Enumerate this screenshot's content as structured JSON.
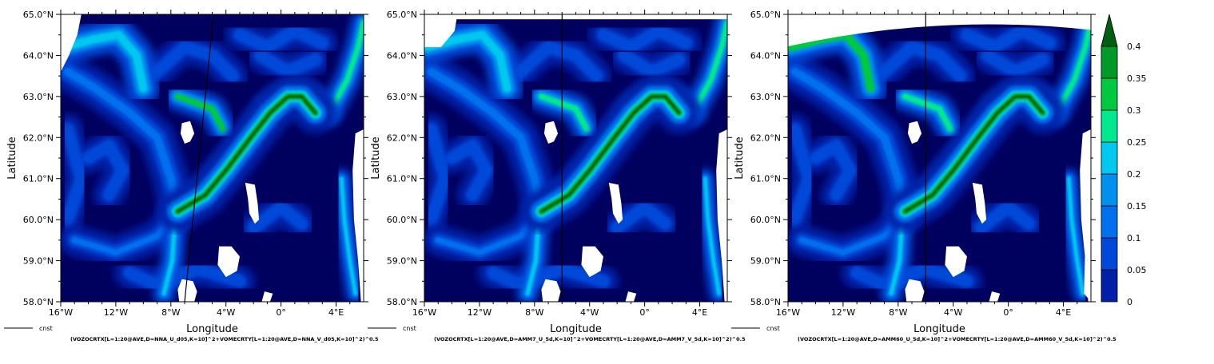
{
  "colors": {
    "levels": [
      "#00005f",
      "#0020a8",
      "#0048d8",
      "#0070ee",
      "#0090f0",
      "#00c8ee",
      "#00e890",
      "#00c840",
      "#009a28",
      "#005e10"
    ],
    "land": "#ffffff"
  },
  "chart_data": [
    {
      "type": "heatmap",
      "panel": "NNA_d05",
      "xlabel": "Longitude",
      "ylabel": "Latitude",
      "x_ticks": [
        "16°W",
        "12°W",
        "8°W",
        "4°W",
        "0°",
        "4°E"
      ],
      "y_ticks": [
        "65.0°N",
        "64.0°N",
        "63.0°N",
        "62.0°N",
        "61.0°N",
        "60.0°N",
        "59.0°N",
        "58.0°N"
      ],
      "xlim": [
        -16,
        6
      ],
      "ylim": [
        58,
        65
      ],
      "legend_entry": "cnst",
      "expression": "(VOZOCRTX[L=1:20@AVE,D=NNA_U_d05,K=10]^2+VOMECRTY[L=1:20@AVE,D=NNA_V_d05,K=10]^2)^0.5",
      "section_line": [
        [
          -7.0,
          58.0
        ],
        [
          -4.9,
          65.0
        ]
      ]
    },
    {
      "type": "heatmap",
      "panel": "AMM7_5d",
      "xlabel": "Longitude",
      "ylabel": "Latitude",
      "x_ticks": [
        "16°W",
        "12°W",
        "8°W",
        "4°W",
        "0°",
        "4°E"
      ],
      "y_ticks": [
        "65.0°N",
        "64.0°N",
        "63.0°N",
        "62.0°N",
        "61.0°N",
        "60.0°N",
        "59.0°N",
        "58.0°N"
      ],
      "xlim": [
        -16,
        6
      ],
      "ylim": [
        58,
        65
      ],
      "legend_entry": "cnst",
      "expression": "(VOZOCRTX[L=1:20@AVE,D=AMM7_U_5d,K=10]^2+VOMECRTY[L=1:20@AVE,D=AMM7_V_5d,K=10]^2)^0.5",
      "section_line": [
        [
          -6.0,
          58.0
        ],
        [
          -6.0,
          65.0
        ]
      ]
    },
    {
      "type": "heatmap",
      "panel": "AMM60_5d",
      "xlabel": "Longitude",
      "ylabel": "Latitude",
      "x_ticks": [
        "16°W",
        "12°W",
        "8°W",
        "4°W",
        "0°",
        "4°E"
      ],
      "y_ticks": [
        "65.0°N",
        "64.0°N",
        "63.0°N",
        "62.0°N",
        "61.0°N",
        "60.0°N",
        "59.0°N",
        "58.0°N"
      ],
      "xlim": [
        -16,
        6
      ],
      "ylim": [
        58,
        65
      ],
      "legend_entry": "cnst",
      "expression": "(VOZOCRTX[L=1:20@AVE,D=AMM60_U_5d,K=10]^2+VOMECRTY[L=1:20@AVE,D=AMM60_V_5d,K=10]^2)^0.5",
      "section_line": [
        [
          -6.0,
          58.0
        ],
        [
          -6.0,
          65.0
        ]
      ]
    }
  ],
  "colorbar": {
    "labels": [
      "0",
      "0.05",
      "0.1",
      "0.15",
      "0.2",
      "0.25",
      "0.3",
      "0.35",
      "0.4"
    ],
    "extend": "max"
  }
}
